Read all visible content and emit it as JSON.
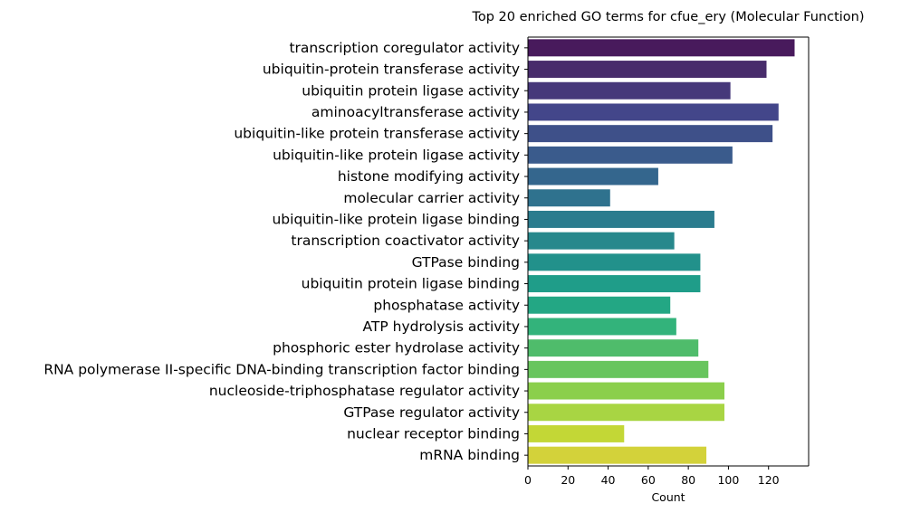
{
  "chart_data": {
    "type": "bar",
    "orientation": "horizontal",
    "title": "Top 20 enriched GO terms for cfue_ery (Molecular Function)",
    "xlabel": "Count",
    "ylabel": "",
    "xlim": [
      0,
      140
    ],
    "xticks": [
      "0",
      "20",
      "40",
      "60",
      "80",
      "100",
      "120"
    ],
    "grid": false,
    "categories": [
      "transcription coregulator activity",
      "ubiquitin-protein transferase activity",
      "ubiquitin protein ligase activity",
      "aminoacyltransferase activity",
      "ubiquitin-like protein transferase activity",
      "ubiquitin-like protein ligase activity",
      "histone modifying activity",
      "molecular carrier activity",
      "ubiquitin-like protein ligase binding",
      "transcription coactivator activity",
      "GTPase binding",
      "ubiquitin protein ligase binding",
      "phosphatase activity",
      "ATP hydrolysis activity",
      "phosphoric ester hydrolase activity",
      "RNA polymerase II-specific DNA-binding transcription factor binding",
      "nucleoside-triphosphatase regulator activity",
      "GTPase regulator activity",
      "nuclear receptor binding",
      "mRNA binding"
    ],
    "values": [
      133,
      119,
      101,
      125,
      122,
      102,
      65,
      41,
      93,
      73,
      86,
      86,
      71,
      74,
      85,
      90,
      98,
      98,
      48,
      89
    ],
    "colors": [
      "#481a5c",
      "#482c6b",
      "#46387a",
      "#43468a",
      "#3e5089",
      "#3a5b8c",
      "#34668d",
      "#2f728e",
      "#2b7c8e",
      "#27888c",
      "#22918b",
      "#1f9d89",
      "#23a784",
      "#33b37b",
      "#4fbc6b",
      "#68c55e",
      "#8bcf4b",
      "#a8d543",
      "#c3d736",
      "#d3d23a"
    ]
  }
}
